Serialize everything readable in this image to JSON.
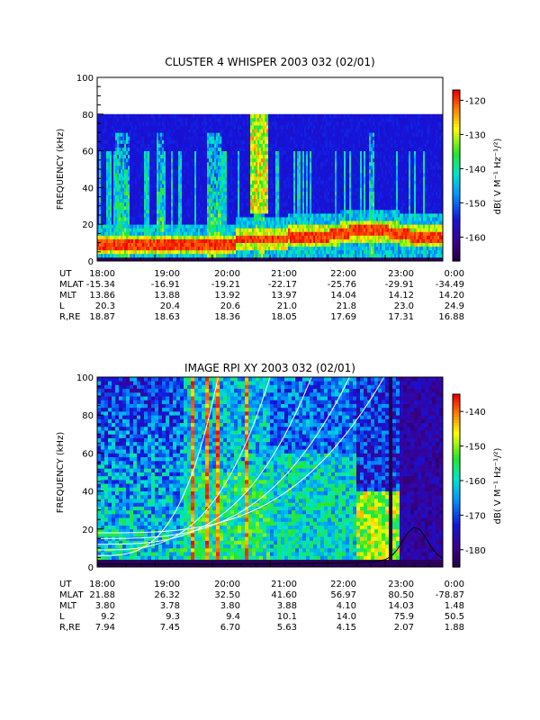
{
  "chart_data": [
    {
      "type": "heatmap",
      "title": "CLUSTER 4 WHISPER 2003 032 (02/01)",
      "ylabel": "FREQUENCY (kHz)",
      "ylim": [
        0,
        100
      ],
      "yticks": [
        "0",
        "20",
        "40",
        "60",
        "80",
        "100"
      ],
      "data_ylim": [
        0,
        80
      ],
      "colorbar": {
        "label": "dB( V M⁻¹ Hz⁻¹/²)",
        "ticks": [
          "-120",
          "-130",
          "-140",
          "-150",
          "-160"
        ],
        "range": [
          -167,
          -117
        ]
      },
      "ephemeris": {
        "row_labels": [
          "UT",
          "MLAT",
          "MLT",
          "L",
          "R,RE"
        ],
        "columns": [
          {
            "UT": "18:00",
            "MLAT": "-15.34",
            "MLT": "13.86",
            "L": "20.3",
            "R,RE": "18.87"
          },
          {
            "UT": "19:00",
            "MLAT": "-16.91",
            "MLT": "13.88",
            "L": "20.4",
            "R,RE": "18.63"
          },
          {
            "UT": "20:00",
            "MLAT": "-19.21",
            "MLT": "13.92",
            "L": "20.6",
            "R,RE": "18.36"
          },
          {
            "UT": "21:00",
            "MLAT": "-22.17",
            "MLT": "13.97",
            "L": "21.0",
            "R,RE": "18.05"
          },
          {
            "UT": "22:00",
            "MLAT": "-25.76",
            "MLT": "14.04",
            "L": "21.8",
            "R,RE": "17.69"
          },
          {
            "UT": "23:00",
            "MLAT": "-29.91",
            "MLT": "14.12",
            "L": "23.0",
            "R,RE": "17.31"
          },
          {
            "UT": "0:00",
            "MLAT": "-34.49",
            "MLT": "14.20",
            "L": "24.9",
            "R,RE": "16.88"
          }
        ]
      }
    },
    {
      "type": "heatmap",
      "title": "IMAGE RPI XY 2003 032 (02/01)",
      "ylabel": "FREQUENCY (kHz)",
      "ylim": [
        0,
        100
      ],
      "yticks": [
        "0",
        "20",
        "40",
        "60",
        "80",
        "100"
      ],
      "colorbar": {
        "label": "dB( V M⁻¹ Hz⁻¹/²)",
        "ticks": [
          "-140",
          "-150",
          "-160",
          "-170",
          "-180"
        ],
        "range": [
          -185,
          -135
        ]
      },
      "ephemeris": {
        "row_labels": [
          "UT",
          "MLAT",
          "MLT",
          "L",
          "R,RE"
        ],
        "columns": [
          {
            "UT": "18:00",
            "MLAT": "21.88",
            "MLT": "3.80",
            "L": "9.2",
            "R,RE": "7.94"
          },
          {
            "UT": "19:00",
            "MLAT": "26.32",
            "MLT": "3.78",
            "L": "9.3",
            "R,RE": "7.45"
          },
          {
            "UT": "20:00",
            "MLAT": "32.50",
            "MLT": "3.80",
            "L": "9.4",
            "R,RE": "6.70"
          },
          {
            "UT": "21:00",
            "MLAT": "41.60",
            "MLT": "3.88",
            "L": "10.1",
            "R,RE": "5.63"
          },
          {
            "UT": "22:00",
            "MLAT": "56.97",
            "MLT": "4.10",
            "L": "14.0",
            "R,RE": "4.15"
          },
          {
            "UT": "23:00",
            "MLAT": "80.50",
            "MLT": "14.03",
            "L": "75.9",
            "R,RE": "2.07"
          },
          {
            "UT": "0:00",
            "MLAT": "-78.87",
            "MLT": "1.48",
            "L": "50.5",
            "R,RE": "1.88"
          }
        ]
      }
    }
  ]
}
